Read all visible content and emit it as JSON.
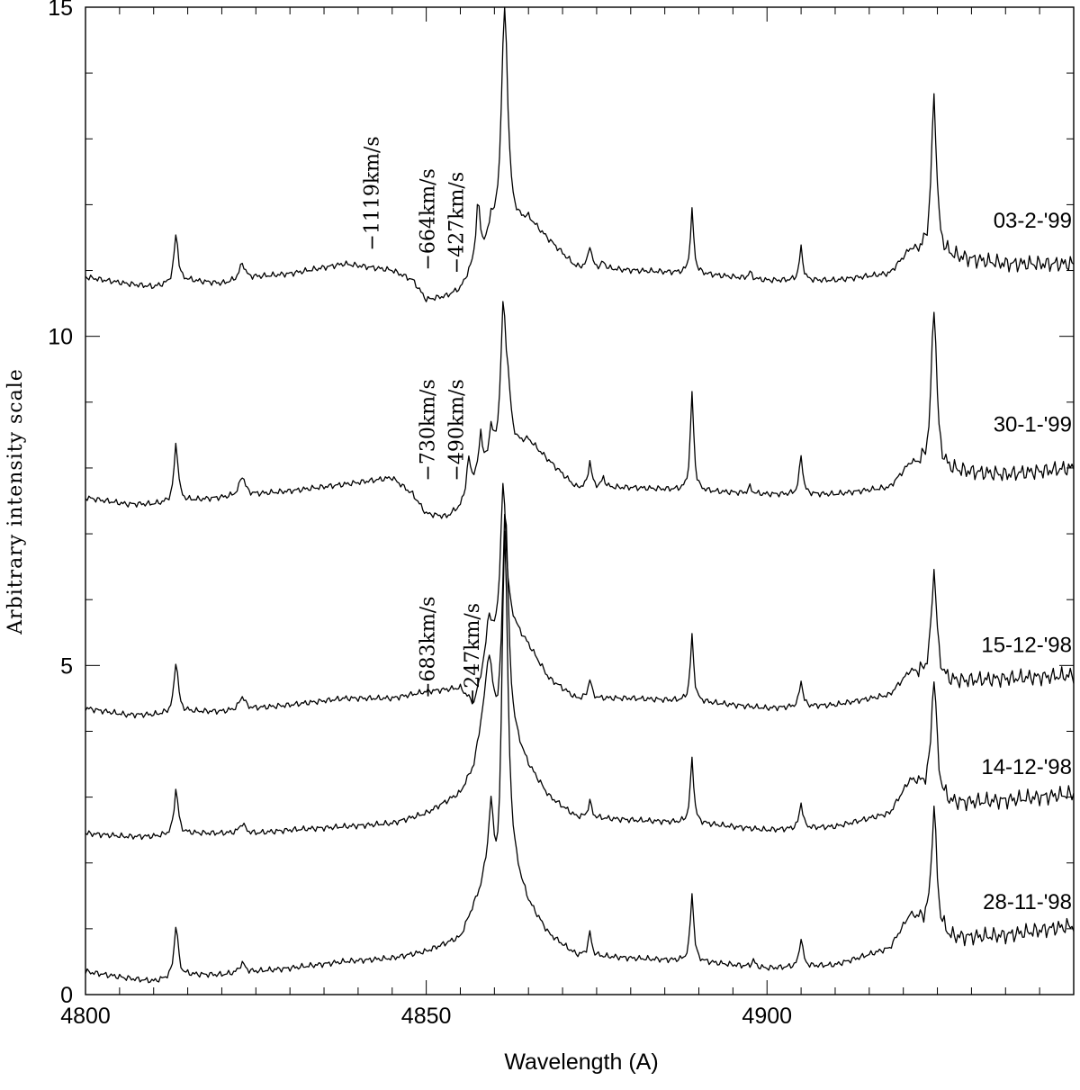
{
  "chart_data": {
    "type": "line",
    "title": "",
    "xlabel": "Wavelength (A)",
    "ylabel": "Arbitrary intensity scale",
    "xlim": [
      4800,
      4945
    ],
    "ylim": [
      0,
      15
    ],
    "x_ticks": [
      4800,
      4850,
      4900
    ],
    "y_ticks": [
      0,
      5,
      10,
      15
    ],
    "legend": "none",
    "grid": false,
    "series": [
      {
        "name": "03-2-'99",
        "offset": 10.85,
        "baseline": [
          [
            4800,
            0.05
          ],
          [
            4806,
            -0.05
          ],
          [
            4810,
            -0.1
          ],
          [
            4815,
            0.0
          ],
          [
            4820,
            -0.05
          ],
          [
            4825,
            0.05
          ],
          [
            4830,
            0.1
          ],
          [
            4838,
            0.25
          ],
          [
            4845,
            0.15
          ],
          [
            4848,
            0.0
          ],
          [
            4850,
            -0.3
          ],
          [
            4853,
            -0.25
          ],
          [
            4855,
            -0.15
          ],
          [
            4857,
            0.2
          ],
          [
            4860,
            0.6
          ],
          [
            4865,
            0.9
          ],
          [
            4868,
            0.6
          ],
          [
            4872,
            0.2
          ],
          [
            4880,
            0.15
          ],
          [
            4890,
            0.1
          ],
          [
            4900,
            0.0
          ],
          [
            4910,
            0.0
          ],
          [
            4918,
            0.1
          ],
          [
            4921,
            0.45
          ],
          [
            4927,
            0.35
          ],
          [
            4935,
            0.25
          ],
          [
            4945,
            0.25
          ]
        ],
        "peaks": [
          [
            4813.3,
            0.75,
            0.35
          ],
          [
            4823,
            0.25,
            0.5
          ],
          [
            4857.6,
            0.85,
            0.35
          ],
          [
            4859.5,
            0.3,
            0.3
          ],
          [
            4861.5,
            3.5,
            0.55
          ],
          [
            4874,
            0.35,
            0.3
          ],
          [
            4876,
            0.1,
            0.3
          ],
          [
            4889,
            0.95,
            0.3
          ],
          [
            4897.5,
            0.1,
            0.3
          ],
          [
            4905,
            0.5,
            0.3
          ],
          [
            4924.5,
            2.4,
            0.45
          ]
        ],
        "label_value": 11.65
      },
      {
        "name": "30-1-'99",
        "offset": 7.5,
        "baseline": [
          [
            4800,
            0.05
          ],
          [
            4806,
            -0.05
          ],
          [
            4810,
            -0.05
          ],
          [
            4815,
            0.0
          ],
          [
            4820,
            0.05
          ],
          [
            4825,
            0.1
          ],
          [
            4830,
            0.15
          ],
          [
            4838,
            0.25
          ],
          [
            4845,
            0.35
          ],
          [
            4848,
            0.1
          ],
          [
            4850,
            -0.2
          ],
          [
            4853,
            -0.25
          ],
          [
            4855,
            -0.1
          ],
          [
            4857,
            0.3
          ],
          [
            4860,
            0.6
          ],
          [
            4865,
            0.9
          ],
          [
            4868,
            0.6
          ],
          [
            4872,
            0.2
          ],
          [
            4880,
            0.2
          ],
          [
            4890,
            0.15
          ],
          [
            4900,
            0.1
          ],
          [
            4910,
            0.1
          ],
          [
            4918,
            0.2
          ],
          [
            4921,
            0.55
          ],
          [
            4927,
            0.45
          ],
          [
            4935,
            0.4
          ],
          [
            4945,
            0.5
          ]
        ],
        "peaks": [
          [
            4813.3,
            0.9,
            0.35
          ],
          [
            4823,
            0.3,
            0.5
          ],
          [
            4856.2,
            0.5,
            0.3
          ],
          [
            4858,
            0.6,
            0.3
          ],
          [
            4859.5,
            0.5,
            0.3
          ],
          [
            4861.3,
            2.1,
            0.45
          ],
          [
            4862,
            0.7,
            0.5
          ],
          [
            4874,
            0.4,
            0.3
          ],
          [
            4876,
            0.15,
            0.3
          ],
          [
            4889,
            1.5,
            0.3
          ],
          [
            4897.5,
            0.1,
            0.3
          ],
          [
            4905,
            0.6,
            0.3
          ],
          [
            4924.5,
            2.5,
            0.45
          ]
        ],
        "label_value": 8.55
      },
      {
        "name": "15-12-'98",
        "offset": 4.3,
        "baseline": [
          [
            4800,
            0.05
          ],
          [
            4806,
            -0.05
          ],
          [
            4810,
            -0.05
          ],
          [
            4815,
            0.0
          ],
          [
            4820,
            0.0
          ],
          [
            4825,
            0.05
          ],
          [
            4830,
            0.1
          ],
          [
            4838,
            0.2
          ],
          [
            4845,
            0.2
          ],
          [
            4850,
            0.3
          ],
          [
            4855,
            0.35
          ],
          [
            4857,
            0.1
          ],
          [
            4859,
            0.9
          ],
          [
            4862,
            1.4
          ],
          [
            4865,
            1.0
          ],
          [
            4868,
            0.5
          ],
          [
            4872,
            0.2
          ],
          [
            4880,
            0.2
          ],
          [
            4890,
            0.15
          ],
          [
            4900,
            0.05
          ],
          [
            4910,
            0.1
          ],
          [
            4918,
            0.25
          ],
          [
            4921,
            0.6
          ],
          [
            4927,
            0.45
          ],
          [
            4935,
            0.5
          ],
          [
            4945,
            0.55
          ]
        ],
        "peaks": [
          [
            4813.3,
            0.8,
            0.35
          ],
          [
            4823,
            0.2,
            0.5
          ],
          [
            4859.2,
            0.5,
            0.35
          ],
          [
            4861.3,
            2.2,
            0.45
          ],
          [
            4874,
            0.3,
            0.3
          ],
          [
            4889,
            1.0,
            0.3
          ],
          [
            4905,
            0.4,
            0.3
          ],
          [
            4924.5,
            1.65,
            0.45
          ]
        ],
        "label_value": 5.2
      },
      {
        "name": "14-12-'98",
        "offset": 2.45,
        "baseline": [
          [
            4800,
            0.0
          ],
          [
            4806,
            -0.05
          ],
          [
            4810,
            -0.05
          ],
          [
            4815,
            0.0
          ],
          [
            4820,
            0.0
          ],
          [
            4825,
            0.0
          ],
          [
            4830,
            0.05
          ],
          [
            4838,
            0.1
          ],
          [
            4845,
            0.15
          ],
          [
            4850,
            0.3
          ],
          [
            4855,
            0.6
          ],
          [
            4857,
            1.0
          ],
          [
            4859,
            2.2
          ],
          [
            4860.5,
            1.5
          ],
          [
            4862,
            1.6
          ],
          [
            4865,
            1.0
          ],
          [
            4868,
            0.55
          ],
          [
            4872,
            0.25
          ],
          [
            4880,
            0.2
          ],
          [
            4890,
            0.15
          ],
          [
            4900,
            0.05
          ],
          [
            4910,
            0.1
          ],
          [
            4918,
            0.3
          ],
          [
            4921,
            0.8
          ],
          [
            4927,
            0.45
          ],
          [
            4935,
            0.5
          ],
          [
            4945,
            0.6
          ]
        ],
        "peaks": [
          [
            4813.3,
            0.7,
            0.35
          ],
          [
            4823,
            0.15,
            0.5
          ],
          [
            4859.3,
            0.5,
            0.4
          ],
          [
            4861.6,
            3.4,
            0.5
          ],
          [
            4874,
            0.25,
            0.3
          ],
          [
            4889,
            1.0,
            0.3
          ],
          [
            4905,
            0.4,
            0.3
          ],
          [
            4924.5,
            1.8,
            0.45
          ]
        ],
        "label_value": 3.35
      },
      {
        "name": "28-11-'98",
        "offset": 0.35,
        "baseline": [
          [
            4800,
            0.0
          ],
          [
            4806,
            -0.1
          ],
          [
            4810,
            -0.15
          ],
          [
            4815,
            -0.05
          ],
          [
            4820,
            -0.05
          ],
          [
            4825,
            0.0
          ],
          [
            4830,
            0.05
          ],
          [
            4838,
            0.15
          ],
          [
            4845,
            0.2
          ],
          [
            4850,
            0.3
          ],
          [
            4855,
            0.5
          ],
          [
            4858,
            1.2
          ],
          [
            4859.5,
            1.8
          ],
          [
            4860.6,
            0.9
          ],
          [
            4862,
            1.7
          ],
          [
            4865,
            1.0
          ],
          [
            4868,
            0.55
          ],
          [
            4872,
            0.25
          ],
          [
            4880,
            0.2
          ],
          [
            4890,
            0.15
          ],
          [
            4900,
            0.05
          ],
          [
            4910,
            0.1
          ],
          [
            4918,
            0.35
          ],
          [
            4921,
            0.85
          ],
          [
            4927,
            0.5
          ],
          [
            4935,
            0.55
          ],
          [
            4945,
            0.7
          ]
        ],
        "peaks": [
          [
            4813.3,
            0.8,
            0.35
          ],
          [
            4823,
            0.15,
            0.5
          ],
          [
            4859.5,
            0.55,
            0.35
          ],
          [
            4861.5,
            5.3,
            0.5
          ],
          [
            4874,
            0.35,
            0.3
          ],
          [
            4889,
            1.05,
            0.3
          ],
          [
            4898,
            0.1,
            0.3
          ],
          [
            4905,
            0.45,
            0.3
          ],
          [
            4924.5,
            1.85,
            0.45
          ]
        ],
        "label_value": 1.3
      }
    ],
    "annotations": [
      {
        "text": "−1119km/s",
        "x": 4843.0,
        "y": 11.3
      },
      {
        "text": "−664km/s",
        "x": 4851.2,
        "y": 11.0
      },
      {
        "text": "−427km/s",
        "x": 4855.4,
        "y": 10.95
      },
      {
        "text": "−730km/s",
        "x": 4851.2,
        "y": 7.8
      },
      {
        "text": "−490km/s",
        "x": 4855.4,
        "y": 7.8
      },
      {
        "text": "−683km/s",
        "x": 4851.2,
        "y": 4.5
      },
      {
        "text": "−247km/s",
        "x": 4857.7,
        "y": 4.4
      }
    ]
  }
}
